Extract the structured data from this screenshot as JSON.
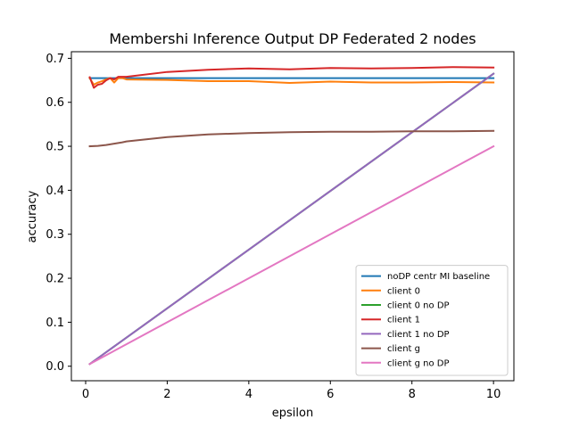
{
  "chart_data": {
    "type": "line",
    "title": "Membershi Inference Output DP Federated 2 nodes",
    "xlabel": "epsilon",
    "ylabel": "accuracy",
    "xlim": [
      -0.35,
      10.5
    ],
    "ylim": [
      -0.033,
      0.715
    ],
    "xticks": [
      0,
      2,
      4,
      6,
      8,
      10
    ],
    "yticks": [
      0.0,
      0.1,
      0.2,
      0.3,
      0.4,
      0.5,
      0.6,
      0.7
    ],
    "xtick_labels": [
      "0",
      "2",
      "4",
      "6",
      "8",
      "10"
    ],
    "ytick_labels": [
      "0.0",
      "0.1",
      "0.2",
      "0.3",
      "0.4",
      "0.5",
      "0.6",
      "0.7"
    ],
    "grid": false,
    "legend_position": "lower-right",
    "series": [
      {
        "name": "noDP centr MI baseline",
        "color": "#1f77b4",
        "x": [
          0.1,
          10
        ],
        "y": [
          0.655,
          0.655
        ]
      },
      {
        "name": "client 0",
        "color": "#ff7f0e",
        "x": [
          0.1,
          0.2,
          0.3,
          0.4,
          0.5,
          0.6,
          0.7,
          0.8,
          0.9,
          1,
          2,
          3,
          4,
          5,
          6,
          7,
          8,
          9,
          10
        ],
        "y": [
          0.655,
          0.64,
          0.645,
          0.648,
          0.652,
          0.655,
          0.645,
          0.655,
          0.655,
          0.652,
          0.651,
          0.648,
          0.648,
          0.644,
          0.647,
          0.645,
          0.645,
          0.646,
          0.645
        ]
      },
      {
        "name": "client 0 no DP",
        "color": "#2ca02c",
        "x": [
          0.1,
          10
        ],
        "y": [
          0.005,
          0.665
        ]
      },
      {
        "name": "client 1",
        "color": "#d62728",
        "x": [
          0.1,
          0.2,
          0.3,
          0.4,
          0.5,
          0.6,
          0.7,
          0.8,
          0.9,
          1,
          2,
          3,
          4,
          5,
          6,
          7,
          8,
          9,
          10
        ],
        "y": [
          0.657,
          0.633,
          0.64,
          0.642,
          0.65,
          0.655,
          0.652,
          0.658,
          0.658,
          0.658,
          0.669,
          0.674,
          0.677,
          0.675,
          0.678,
          0.677,
          0.678,
          0.68,
          0.679
        ]
      },
      {
        "name": "client 1 no DP",
        "color": "#9467bd",
        "x": [
          0.1,
          10
        ],
        "y": [
          0.005,
          0.665
        ]
      },
      {
        "name": "client g",
        "color": "#8c564b",
        "x": [
          0.1,
          0.3,
          0.5,
          0.7,
          0.9,
          1,
          2,
          3,
          4,
          5,
          6,
          7,
          8,
          9,
          10
        ],
        "y": [
          0.5,
          0.501,
          0.503,
          0.506,
          0.509,
          0.511,
          0.521,
          0.527,
          0.53,
          0.532,
          0.533,
          0.533,
          0.534,
          0.534,
          0.535
        ]
      },
      {
        "name": "client g no DP",
        "color": "#e377c2",
        "x": [
          0.1,
          10
        ],
        "y": [
          0.005,
          0.5
        ]
      }
    ]
  }
}
